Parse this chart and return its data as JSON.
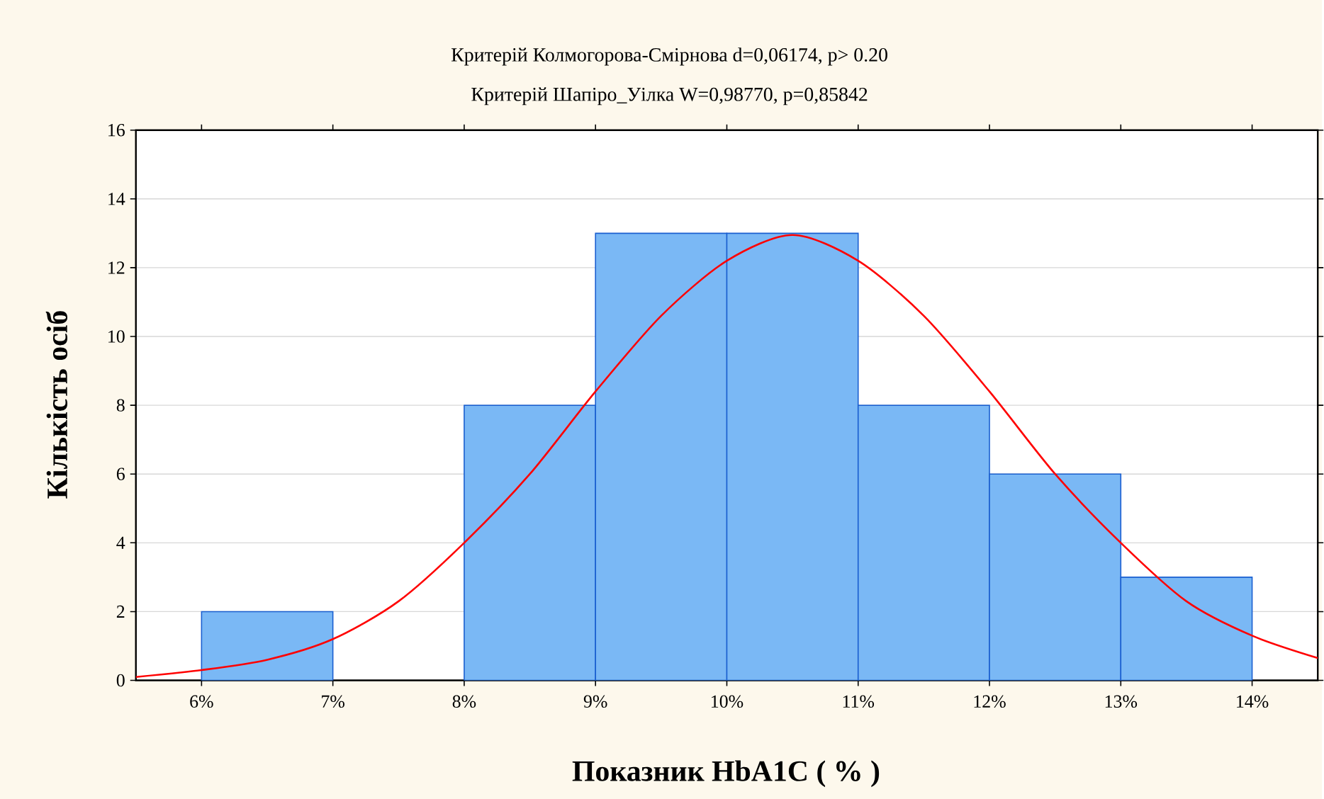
{
  "chart_data": {
    "type": "histogram",
    "title": "Критерій Колмогорова-Смірнова d=0,06174, p> 0.20",
    "subtitle": "Критерій Шапіро_Уілка W=0,98770, p=0,85842",
    "xlabel": "Показник HbA1C ( % )",
    "ylabel": "Кількість осіб",
    "bins": [
      6,
      7,
      8,
      9,
      10,
      11,
      12,
      13,
      14
    ],
    "series": [
      {
        "color": "#7ab8f5",
        "values": [
          2,
          0,
          8,
          13,
          13,
          8,
          6,
          3
        ]
      },
      {
        "type": "line",
        "color": "#ff0000",
        "x": [
          5.5,
          6,
          6.5,
          7,
          7.5,
          8,
          8.5,
          9,
          9.5,
          10,
          10.5,
          11,
          11.5,
          12,
          12.5,
          13,
          13.5,
          14,
          14.5
        ],
        "values": [
          0.1,
          0.3,
          0.6,
          1.2,
          2.3,
          4.0,
          6.0,
          8.4,
          10.6,
          12.2,
          12.95,
          12.2,
          10.6,
          8.4,
          6.0,
          4.0,
          2.3,
          1.3,
          0.65
        ]
      }
    ],
    "xlim": [
      5.5,
      14.5
    ],
    "xticks": [
      {
        "value": 6,
        "label": "6%"
      },
      {
        "value": 7,
        "label": "7%"
      },
      {
        "value": 8,
        "label": "8%"
      },
      {
        "value": 9,
        "label": "9%"
      },
      {
        "value": 10,
        "label": "10%"
      },
      {
        "value": 11,
        "label": "11%"
      },
      {
        "value": 12,
        "label": "12%"
      },
      {
        "value": 13,
        "label": "13%"
      },
      {
        "value": 14,
        "label": "14%"
      }
    ],
    "ylim": [
      0,
      16
    ],
    "yticks": [
      0,
      2,
      4,
      6,
      8,
      10,
      12,
      14,
      16
    ],
    "grid": "y"
  }
}
